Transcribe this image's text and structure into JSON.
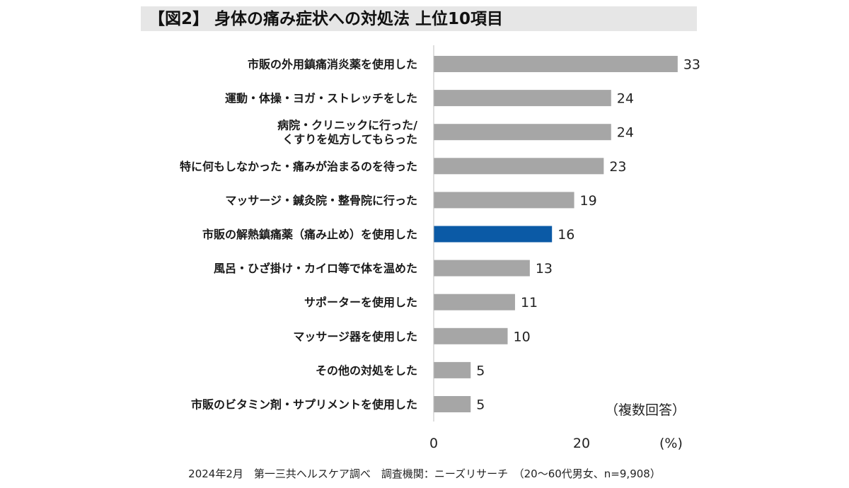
{
  "chart_data": {
    "type": "bar",
    "orientation": "horizontal",
    "title": "【図2】 身体の痛み症状への対処法 上位10項目",
    "categories": [
      [
        "市販の外用鎮痛消炎薬を使用した"
      ],
      [
        "運動・体操・ヨガ・ストレッチをした"
      ],
      [
        "病院・クリニックに行った/",
        "くすりを処方してもらった"
      ],
      [
        "特に何もしなかった・痛みが治まるのを待った"
      ],
      [
        "マッサージ・鍼灸院・整骨院に行った"
      ],
      [
        "市販の解熱鎮痛薬（痛み止め）を使用した"
      ],
      [
        "風呂・ひざ掛け・カイロ等で体を温めた"
      ],
      [
        "サポーターを使用した"
      ],
      [
        "マッサージ器を使用した"
      ],
      [
        "その他の対処をした"
      ],
      [
        "市販のビタミン剤・サプリメントを使用した"
      ]
    ],
    "values": [
      33,
      24,
      24,
      23,
      19,
      16,
      13,
      11,
      10,
      5,
      5
    ],
    "highlight_index": 5,
    "xlim": [
      0,
      33
    ],
    "xticks": [
      "0",
      "20"
    ],
    "xtick_values": [
      0,
      20
    ],
    "unit_label": "(%)",
    "annotation": "（複数回答）",
    "colors": {
      "bar": "#a6a6a6",
      "highlight": "#0b5aa6",
      "axis": "#bfbfbf",
      "title_bg": "#e6e6e6"
    }
  },
  "footer": {
    "source": "2024年2月　第一三共ヘルスケア調べ　調査機関：ニーズリサーチ　（20～60代男女、n=9,908）"
  }
}
